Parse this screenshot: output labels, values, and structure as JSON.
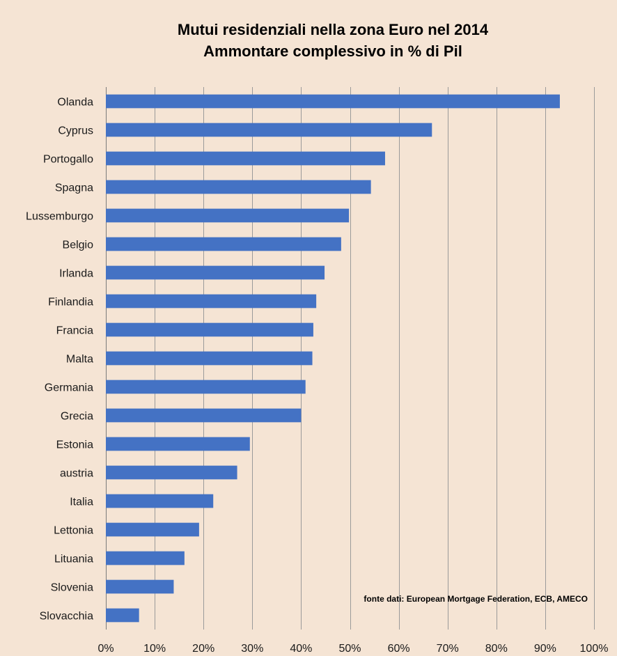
{
  "chart_data": {
    "type": "bar",
    "orientation": "horizontal",
    "title": "Mutui residenziali nella zona Euro nel 2014",
    "subtitle": "Ammontare complessivo in % di Pil",
    "categories": [
      "Olanda",
      "Cyprus",
      "Portogallo",
      "Spagna",
      "Lussemburgo",
      "Belgio",
      "Irlanda",
      "Finlandia",
      "Francia",
      "Malta",
      "Germania",
      "Grecia",
      "Estonia",
      "austria",
      "Italia",
      "Lettonia",
      "Lituania",
      "Slovenia",
      "Slovacchia"
    ],
    "values": [
      93,
      66.8,
      57.2,
      54.3,
      49.8,
      48.2,
      44.8,
      43.1,
      42.5,
      42.3,
      40.9,
      40.0,
      29.5,
      26.9,
      22.0,
      19.1,
      16.1,
      13.9,
      6.8
    ],
    "xlim": [
      0,
      100
    ],
    "ticks": [
      0,
      10,
      20,
      30,
      40,
      50,
      60,
      70,
      80,
      90,
      100
    ],
    "tick_labels": [
      "0%",
      "10%",
      "20%",
      "30%",
      "40%",
      "50%",
      "60%",
      "70%",
      "80%",
      "90%",
      "100%"
    ],
    "xlabel": "",
    "ylabel": "",
    "grid": true,
    "bar_color": "#4472c4",
    "source": "fonte dati: European Mortgage Federation, ECB, AMECO"
  }
}
